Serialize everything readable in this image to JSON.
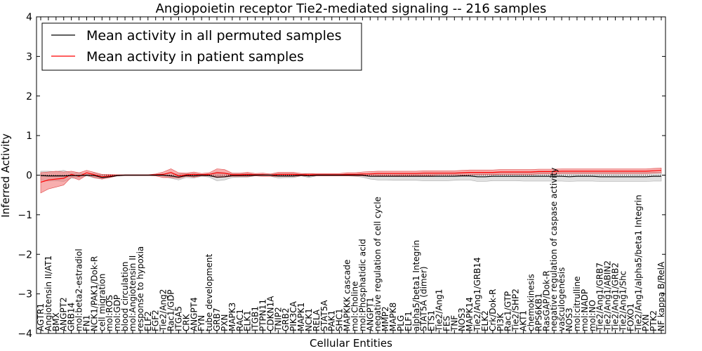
{
  "chart_data": {
    "type": "line",
    "title": "Angiopoietin receptor Tie2-mediated signaling -- 216 samples",
    "xlabel": "Cellular Entities",
    "ylabel": "Inferred Activity",
    "ylim": [
      -4,
      4
    ],
    "yticks": [
      -4,
      -3,
      -2,
      -1,
      0,
      1,
      2,
      3,
      4
    ],
    "ytick_labels": [
      "−4",
      "−3",
      "−2",
      "−1",
      "0",
      "1",
      "2",
      "3",
      "4"
    ],
    "legend_position": "top-left",
    "categories": [
      "AGTR1",
      "Angiotensin II/AT1",
      "BMX",
      "ANGPT2",
      "GRB14",
      "mol:beta2-estradiol",
      "FN1",
      "NCK1/PAK1/Dok-R",
      "cell migration",
      "mol:ROS",
      "mol:GDP",
      "blood circulation",
      "mol:Angiotensin II",
      "response to hypoxia",
      "ELF2",
      "FGF2",
      "Tie2/Ang2",
      "Rac1/GDP",
      "ITGA5",
      "CRK",
      "ANGPT4",
      "FYN",
      "tube development",
      "GRB7",
      "PXN",
      "MAPK3",
      "RAC1",
      "ELK1",
      "ITGB1",
      "PTPN11",
      "CDKN1A",
      "TNIP2",
      "GRB2",
      "PIK3CA",
      "MAPK1",
      "NCK1",
      "RELA",
      "STAT5A",
      "PAK1",
      "SHC1",
      "MAPKKK cascade",
      "mol:Choline",
      "mol:Phosphatidic acid",
      "ANGPT1",
      "negative regulation of cell cycle",
      "MMP2",
      "MAPK8",
      "PLG",
      "ELF1",
      "alpha5/beta1 Integrin",
      "STAT5A (dimer)",
      "ETS1",
      "Tie2/Ang1",
      "FES",
      "TNF",
      "NOS3",
      "MAPK14",
      "Tie2/Ang1/GRB14",
      "ELK2",
      "Crk/Dok-R",
      "PI3K",
      "Rac1/GTP",
      "Tie2/SHP2",
      "AKT1",
      "chemokinesis",
      "RPS6KB1",
      "RasGAP/Dok-R",
      "negative regulation of caspase activity",
      "vasculogenesis",
      "NOS3",
      "mol:citrulline",
      "mol:NADP",
      "mol:NO",
      "Tie2/Ang1/GRB7",
      "Tie2/Ang1/ABIN2",
      "Tie2/Ang1/GRB2",
      "Tie2/Ang1/Shc",
      "FOXO1",
      "Tie2/Ang1/alpha5/beta1 Integrin",
      "PXN",
      "PTK2",
      "NF kappa B/RelA"
    ],
    "series": [
      {
        "name": "Mean activity in all permuted samples",
        "color": "#000000",
        "values": [
          -0.01,
          -0.02,
          -0.02,
          -0.02,
          -0.01,
          -0.01,
          0.0,
          -0.01,
          -0.06,
          -0.04,
          -0.01,
          0.0,
          0.0,
          0.0,
          0.0,
          0.0,
          0.0,
          -0.02,
          -0.05,
          -0.01,
          -0.02,
          0.0,
          -0.01,
          -0.05,
          -0.04,
          -0.01,
          -0.01,
          -0.01,
          0.0,
          0.0,
          0.0,
          -0.02,
          -0.02,
          -0.02,
          0.0,
          -0.02,
          0.0,
          0.0,
          0.0,
          0.0,
          0.0,
          0.0,
          0.0,
          -0.03,
          -0.03,
          -0.03,
          -0.03,
          -0.03,
          -0.03,
          -0.03,
          -0.03,
          -0.03,
          -0.03,
          -0.03,
          -0.03,
          -0.02,
          -0.02,
          -0.04,
          -0.04,
          -0.03,
          -0.03,
          -0.03,
          -0.03,
          -0.03,
          -0.03,
          -0.03,
          -0.03,
          -0.03,
          -0.03,
          -0.04,
          -0.03,
          -0.03,
          -0.03,
          -0.04,
          -0.04,
          -0.04,
          -0.04,
          -0.04,
          -0.04,
          -0.04,
          -0.03,
          -0.03
        ],
        "band_lower": [
          -0.12,
          -0.15,
          -0.14,
          -0.16,
          -0.08,
          -0.07,
          -0.02,
          -0.07,
          -0.1,
          -0.06,
          -0.02,
          -0.01,
          -0.01,
          -0.01,
          -0.01,
          -0.01,
          -0.03,
          -0.08,
          -0.12,
          -0.06,
          -0.07,
          -0.03,
          -0.05,
          -0.14,
          -0.12,
          -0.06,
          -0.05,
          -0.05,
          -0.02,
          -0.03,
          -0.03,
          -0.07,
          -0.06,
          -0.06,
          -0.02,
          -0.06,
          -0.02,
          -0.02,
          -0.02,
          -0.02,
          -0.02,
          -0.03,
          -0.05,
          -0.1,
          -0.12,
          -0.12,
          -0.13,
          -0.13,
          -0.13,
          -0.13,
          -0.14,
          -0.14,
          -0.14,
          -0.14,
          -0.13,
          -0.12,
          -0.12,
          -0.16,
          -0.16,
          -0.14,
          -0.14,
          -0.14,
          -0.14,
          -0.15,
          -0.15,
          -0.15,
          -0.15,
          -0.15,
          -0.15,
          -0.16,
          -0.15,
          -0.15,
          -0.15,
          -0.16,
          -0.16,
          -0.16,
          -0.16,
          -0.16,
          -0.16,
          -0.16,
          -0.15,
          -0.15
        ],
        "band_upper": [
          0.1,
          0.1,
          0.09,
          0.12,
          0.05,
          0.06,
          0.02,
          0.05,
          0.0,
          0.0,
          0.01,
          0.01,
          0.01,
          0.01,
          0.01,
          0.01,
          0.03,
          0.04,
          0.03,
          0.04,
          0.04,
          0.02,
          0.03,
          0.08,
          0.06,
          0.04,
          0.04,
          0.04,
          0.02,
          0.02,
          0.02,
          0.04,
          0.04,
          0.04,
          0.02,
          0.04,
          0.02,
          0.02,
          0.02,
          0.02,
          0.02,
          0.02,
          0.02,
          0.04,
          0.05,
          0.05,
          0.05,
          0.05,
          0.05,
          0.05,
          0.06,
          0.06,
          0.06,
          0.06,
          0.06,
          0.07,
          0.07,
          0.07,
          0.07,
          0.07,
          0.07,
          0.07,
          0.07,
          0.07,
          0.07,
          0.07,
          0.07,
          0.07,
          0.07,
          0.07,
          0.07,
          0.07,
          0.07,
          0.07,
          0.07,
          0.07,
          0.07,
          0.07,
          0.07,
          0.07,
          0.07,
          0.07
        ]
      },
      {
        "name": "Mean activity in patient samples",
        "color": "#ff0000",
        "values": [
          -0.18,
          -0.12,
          -0.1,
          -0.08,
          0.02,
          -0.03,
          0.06,
          0.01,
          -0.04,
          -0.02,
          -0.01,
          0.0,
          0.0,
          0.0,
          0.0,
          0.01,
          0.02,
          0.07,
          -0.02,
          0.01,
          0.02,
          0.01,
          0.02,
          0.06,
          0.05,
          0.01,
          0.01,
          0.02,
          0.01,
          0.01,
          0.0,
          0.02,
          0.02,
          0.02,
          0.01,
          0.01,
          0.01,
          0.01,
          0.01,
          0.01,
          0.02,
          0.02,
          0.03,
          0.03,
          0.04,
          0.04,
          0.04,
          0.04,
          0.04,
          0.04,
          0.05,
          0.05,
          0.05,
          0.05,
          0.05,
          0.06,
          0.07,
          0.07,
          0.07,
          0.07,
          0.08,
          0.08,
          0.08,
          0.08,
          0.08,
          0.09,
          0.09,
          0.09,
          0.1,
          0.1,
          0.1,
          0.1,
          0.1,
          0.1,
          0.1,
          0.1,
          0.1,
          0.1,
          0.1,
          0.1,
          0.11,
          0.12
        ],
        "band_lower": [
          -0.45,
          -0.35,
          -0.3,
          -0.25,
          -0.05,
          -0.12,
          0.0,
          -0.06,
          -0.1,
          -0.06,
          -0.02,
          -0.01,
          -0.01,
          -0.01,
          -0.01,
          -0.02,
          -0.06,
          -0.06,
          -0.08,
          -0.03,
          -0.05,
          -0.02,
          -0.02,
          -0.06,
          -0.05,
          -0.03,
          -0.03,
          -0.03,
          -0.02,
          -0.03,
          -0.03,
          -0.03,
          -0.03,
          -0.03,
          -0.02,
          -0.02,
          -0.02,
          -0.02,
          -0.02,
          -0.02,
          -0.02,
          -0.02,
          -0.02,
          -0.03,
          -0.02,
          -0.02,
          -0.02,
          -0.01,
          -0.01,
          -0.01,
          -0.01,
          -0.01,
          0.0,
          0.0,
          0.0,
          0.0,
          0.01,
          0.01,
          0.01,
          0.01,
          0.02,
          0.02,
          0.02,
          0.02,
          0.02,
          0.03,
          0.03,
          0.03,
          0.04,
          0.04,
          0.04,
          0.04,
          0.04,
          0.04,
          0.04,
          0.04,
          0.04,
          0.04,
          0.04,
          0.04,
          0.05,
          0.06
        ],
        "band_upper": [
          0.06,
          0.08,
          0.1,
          0.08,
          0.1,
          0.06,
          0.12,
          0.07,
          0.02,
          0.02,
          0.01,
          0.01,
          0.01,
          0.01,
          0.01,
          0.03,
          0.08,
          0.16,
          0.06,
          0.05,
          0.08,
          0.04,
          0.06,
          0.16,
          0.14,
          0.05,
          0.05,
          0.07,
          0.04,
          0.05,
          0.03,
          0.07,
          0.07,
          0.07,
          0.04,
          0.04,
          0.04,
          0.04,
          0.04,
          0.04,
          0.06,
          0.06,
          0.08,
          0.09,
          0.1,
          0.1,
          0.1,
          0.1,
          0.1,
          0.1,
          0.11,
          0.11,
          0.11,
          0.11,
          0.11,
          0.12,
          0.13,
          0.13,
          0.13,
          0.13,
          0.14,
          0.14,
          0.14,
          0.14,
          0.14,
          0.15,
          0.15,
          0.15,
          0.16,
          0.16,
          0.16,
          0.16,
          0.16,
          0.16,
          0.16,
          0.16,
          0.16,
          0.16,
          0.16,
          0.16,
          0.17,
          0.18
        ]
      }
    ]
  }
}
